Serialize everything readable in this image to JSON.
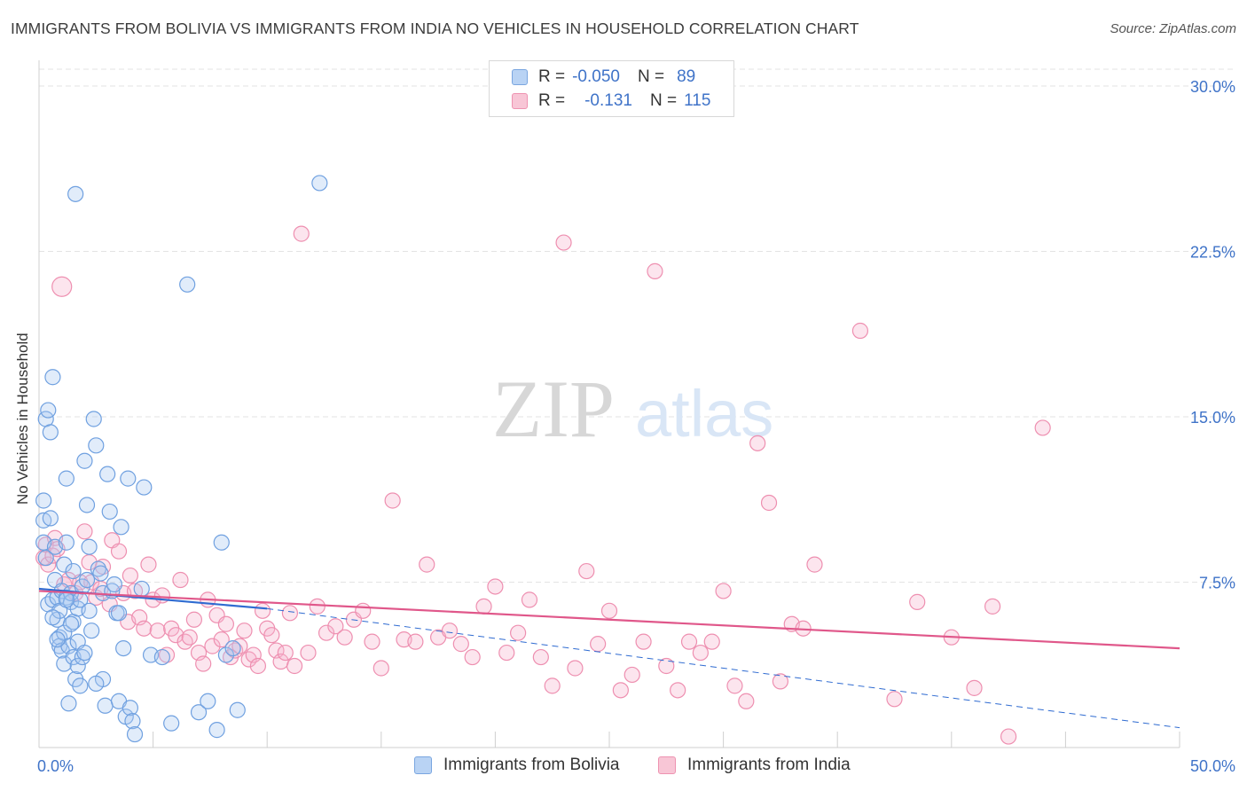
{
  "header": {
    "title": "IMMIGRANTS FROM BOLIVIA VS IMMIGRANTS FROM INDIA NO VEHICLES IN HOUSEHOLD CORRELATION CHART",
    "source": "Source: ZipAtlas.com"
  },
  "watermark": {
    "zip": "ZIP",
    "atlas": "atlas"
  },
  "colors": {
    "bolivia": "#6fa0e0",
    "india": "#ee8fb0",
    "bolivia_line": "#2f6bd1",
    "india_line": "#e0578a",
    "axis_text": "#3f73c8"
  },
  "legend": {
    "bolivia": {
      "r_label": "R =",
      "r_value": "-0.050",
      "n_label": "N =",
      "n_value": "89"
    },
    "india": {
      "r_label": "R =",
      "r_value": "-0.131",
      "n_label": "N =",
      "n_value": "115"
    }
  },
  "chart_data": {
    "type": "scatter",
    "title": "IMMIGRANTS FROM BOLIVIA VS IMMIGRANTS FROM INDIA NO VEHICLES IN HOUSEHOLD CORRELATION CHART",
    "xlabel": "",
    "ylabel": "No Vehicles in Household",
    "xlim": [
      0,
      50
    ],
    "ylim": [
      0,
      30
    ],
    "x_tick_labels": [
      "0.0%",
      "50.0%"
    ],
    "y_ticks": [
      7.5,
      15.0,
      22.5,
      30.0
    ],
    "y_tick_labels": [
      "7.5%",
      "15.0%",
      "22.5%",
      "30.0%"
    ],
    "grid": true,
    "legend_position": "top-center",
    "series": [
      {
        "name": "Immigrants from Bolivia",
        "R": -0.05,
        "N": 89,
        "trend": {
          "x": [
            0,
            10
          ],
          "y": [
            7.2,
            6.3
          ],
          "extended_x": [
            10,
            50
          ],
          "extended_y": [
            6.3,
            0.9
          ]
        },
        "points": [
          [
            0.2,
            11.2
          ],
          [
            0.2,
            10.3
          ],
          [
            0.2,
            9.3
          ],
          [
            0.3,
            8.6
          ],
          [
            0.3,
            14.9
          ],
          [
            0.4,
            15.3
          ],
          [
            0.5,
            14.3
          ],
          [
            0.4,
            6.5
          ],
          [
            0.6,
            6.7
          ],
          [
            0.6,
            16.8
          ],
          [
            0.5,
            10.4
          ],
          [
            0.7,
            9.1
          ],
          [
            0.7,
            7.6
          ],
          [
            0.8,
            6.8
          ],
          [
            0.8,
            5.8
          ],
          [
            0.9,
            6.2
          ],
          [
            0.9,
            5.0
          ],
          [
            0.9,
            4.6
          ],
          [
            1.0,
            7.1
          ],
          [
            1.0,
            4.4
          ],
          [
            1.1,
            8.3
          ],
          [
            1.1,
            5.2
          ],
          [
            1.1,
            3.8
          ],
          [
            1.2,
            9.3
          ],
          [
            1.2,
            6.8
          ],
          [
            1.2,
            12.2
          ],
          [
            1.3,
            4.6
          ],
          [
            1.3,
            2.0
          ],
          [
            1.4,
            6.6
          ],
          [
            1.4,
            7.0
          ],
          [
            1.5,
            8.0
          ],
          [
            1.5,
            5.7
          ],
          [
            1.5,
            4.1
          ],
          [
            1.6,
            3.1
          ],
          [
            1.7,
            6.3
          ],
          [
            1.7,
            4.8
          ],
          [
            1.7,
            3.7
          ],
          [
            1.8,
            2.8
          ],
          [
            1.8,
            6.7
          ],
          [
            1.9,
            4.1
          ],
          [
            1.9,
            7.3
          ],
          [
            2.0,
            13.0
          ],
          [
            2.1,
            11.0
          ],
          [
            2.1,
            7.6
          ],
          [
            2.2,
            9.1
          ],
          [
            2.2,
            6.2
          ],
          [
            2.3,
            5.3
          ],
          [
            2.4,
            14.9
          ],
          [
            2.5,
            13.7
          ],
          [
            2.6,
            8.1
          ],
          [
            2.7,
            7.9
          ],
          [
            2.8,
            7.0
          ],
          [
            2.8,
            3.1
          ],
          [
            2.9,
            1.9
          ],
          [
            3.0,
            12.4
          ],
          [
            3.1,
            10.7
          ],
          [
            3.2,
            7.1
          ],
          [
            3.3,
            7.4
          ],
          [
            3.4,
            6.1
          ],
          [
            3.5,
            6.1
          ],
          [
            3.5,
            2.1
          ],
          [
            3.6,
            10.0
          ],
          [
            3.7,
            4.5
          ],
          [
            3.8,
            1.4
          ],
          [
            3.9,
            12.2
          ],
          [
            4.0,
            1.8
          ],
          [
            4.1,
            1.2
          ],
          [
            4.2,
            0.6
          ],
          [
            4.5,
            7.2
          ],
          [
            4.6,
            11.8
          ],
          [
            4.9,
            4.2
          ],
          [
            5.4,
            4.1
          ],
          [
            5.8,
            1.1
          ],
          [
            6.5,
            21.0
          ],
          [
            7.0,
            1.6
          ],
          [
            7.4,
            2.1
          ],
          [
            7.8,
            0.8
          ],
          [
            8.0,
            9.3
          ],
          [
            8.2,
            4.2
          ],
          [
            8.5,
            4.5
          ],
          [
            8.7,
            1.7
          ],
          [
            12.3,
            25.6
          ],
          [
            1.2,
            6.7
          ],
          [
            2.5,
            2.9
          ],
          [
            1.6,
            25.1
          ],
          [
            0.6,
            5.9
          ],
          [
            1.4,
            5.6
          ],
          [
            2.0,
            4.3
          ],
          [
            0.8,
            4.9
          ]
        ]
      },
      {
        "name": "Immigrants from India",
        "R": -0.131,
        "N": 115,
        "trend": {
          "x": [
            0,
            50
          ],
          "y": [
            7.1,
            4.5
          ]
        },
        "points": [
          [
            0.2,
            8.6
          ],
          [
            0.3,
            9.2
          ],
          [
            0.4,
            8.3
          ],
          [
            0.6,
            8.7
          ],
          [
            0.7,
            9.5
          ],
          [
            0.8,
            9.0
          ],
          [
            1.0,
            20.9
          ],
          [
            1.1,
            7.4
          ],
          [
            1.3,
            7.6
          ],
          [
            1.6,
            7.0
          ],
          [
            1.8,
            7.5
          ],
          [
            2.0,
            9.8
          ],
          [
            2.2,
            8.4
          ],
          [
            2.3,
            7.5
          ],
          [
            2.5,
            6.8
          ],
          [
            2.7,
            7.2
          ],
          [
            2.8,
            8.2
          ],
          [
            3.1,
            6.5
          ],
          [
            3.2,
            9.4
          ],
          [
            3.5,
            8.9
          ],
          [
            3.7,
            7.0
          ],
          [
            3.9,
            5.7
          ],
          [
            4.0,
            7.8
          ],
          [
            4.2,
            7.1
          ],
          [
            4.4,
            5.9
          ],
          [
            4.6,
            5.4
          ],
          [
            4.8,
            8.3
          ],
          [
            5.0,
            6.7
          ],
          [
            5.2,
            5.3
          ],
          [
            5.4,
            6.9
          ],
          [
            5.6,
            4.2
          ],
          [
            5.8,
            5.4
          ],
          [
            6.0,
            5.1
          ],
          [
            6.2,
            7.6
          ],
          [
            6.4,
            4.8
          ],
          [
            6.6,
            5.0
          ],
          [
            6.8,
            5.8
          ],
          [
            7.0,
            4.3
          ],
          [
            7.2,
            3.8
          ],
          [
            7.4,
            6.7
          ],
          [
            7.6,
            4.6
          ],
          [
            7.8,
            6.0
          ],
          [
            8.0,
            4.9
          ],
          [
            8.2,
            5.6
          ],
          [
            8.4,
            4.1
          ],
          [
            8.6,
            4.4
          ],
          [
            8.8,
            4.6
          ],
          [
            9.0,
            5.3
          ],
          [
            9.2,
            4.0
          ],
          [
            9.4,
            4.2
          ],
          [
            9.6,
            3.7
          ],
          [
            9.8,
            6.2
          ],
          [
            10.0,
            5.4
          ],
          [
            10.2,
            5.1
          ],
          [
            10.4,
            4.4
          ],
          [
            10.6,
            3.9
          ],
          [
            10.8,
            4.3
          ],
          [
            11.0,
            6.1
          ],
          [
            11.2,
            3.7
          ],
          [
            11.5,
            23.3
          ],
          [
            11.8,
            4.3
          ],
          [
            12.2,
            6.4
          ],
          [
            12.6,
            5.2
          ],
          [
            13.0,
            5.5
          ],
          [
            13.4,
            5.0
          ],
          [
            13.8,
            5.8
          ],
          [
            14.2,
            6.2
          ],
          [
            14.6,
            4.8
          ],
          [
            15.0,
            3.6
          ],
          [
            15.5,
            11.2
          ],
          [
            16.0,
            4.9
          ],
          [
            16.5,
            4.8
          ],
          [
            17.0,
            8.3
          ],
          [
            17.5,
            5.0
          ],
          [
            18.0,
            5.3
          ],
          [
            18.5,
            4.7
          ],
          [
            19.0,
            4.1
          ],
          [
            19.5,
            6.4
          ],
          [
            20.0,
            7.3
          ],
          [
            20.5,
            4.3
          ],
          [
            21.0,
            5.2
          ],
          [
            21.5,
            6.7
          ],
          [
            22.0,
            4.1
          ],
          [
            22.5,
            2.8
          ],
          [
            23.0,
            22.9
          ],
          [
            23.5,
            3.6
          ],
          [
            24.0,
            8.0
          ],
          [
            24.5,
            4.7
          ],
          [
            25.0,
            6.2
          ],
          [
            25.5,
            2.6
          ],
          [
            26.0,
            3.3
          ],
          [
            26.5,
            4.8
          ],
          [
            27.0,
            21.6
          ],
          [
            27.5,
            3.7
          ],
          [
            28.0,
            2.6
          ],
          [
            28.5,
            4.8
          ],
          [
            29.0,
            4.3
          ],
          [
            29.5,
            4.8
          ],
          [
            30.0,
            7.1
          ],
          [
            30.5,
            2.8
          ],
          [
            31.0,
            2.1
          ],
          [
            31.5,
            13.8
          ],
          [
            32.0,
            11.1
          ],
          [
            32.5,
            3.0
          ],
          [
            33.0,
            5.6
          ],
          [
            33.5,
            5.4
          ],
          [
            34.0,
            8.3
          ],
          [
            36.0,
            18.9
          ],
          [
            37.5,
            2.2
          ],
          [
            38.5,
            6.6
          ],
          [
            40.0,
            5.0
          ],
          [
            41.0,
            2.7
          ],
          [
            41.8,
            6.4
          ],
          [
            42.5,
            0.5
          ],
          [
            44.0,
            14.5
          ]
        ]
      }
    ]
  },
  "axis": {
    "y_label": "No Vehicles in Household",
    "x_left": "0.0%",
    "x_right": "50.0%"
  },
  "bottom_legend": {
    "bolivia": "Immigrants from Bolivia",
    "india": "Immigrants from India"
  }
}
